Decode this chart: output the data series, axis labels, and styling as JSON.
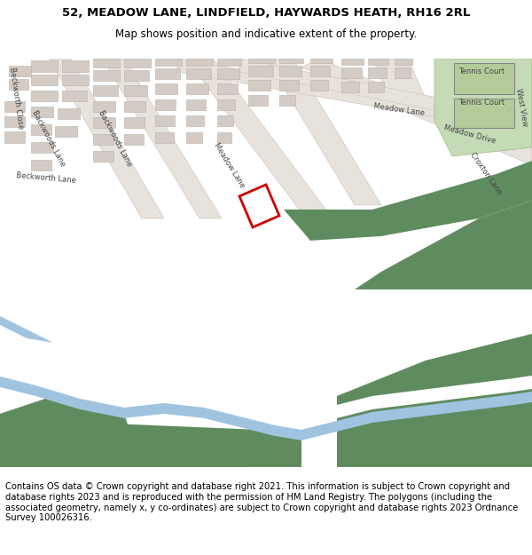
{
  "title_line1": "52, MEADOW LANE, LINDFIELD, HAYWARDS HEATH, RH16 2RL",
  "title_line2": "Map shows position and indicative extent of the property.",
  "footer_text": "Contains OS data © Crown copyright and database right 2021. This information is subject to Crown copyright and database rights 2023 and is reproduced with the permission of HM Land Registry. The polygons (including the associated geometry, namely x, y co-ordinates) are subject to Crown copyright and database rights 2023 Ordnance Survey 100026316.",
  "bg_color": "#ffffff",
  "map_bg": "#f2ede8",
  "green_dark": "#5f8c5f",
  "green_light": "#c5dbb5",
  "green_tennis": "#b5cc9a",
  "road_color": "#e8e2dc",
  "building_fill": "#d4cbc4",
  "building_edge": "#b8b0a8",
  "plot_color": "#cc0000",
  "water_fill": "#a0c4e0",
  "river_bank": "#e8e2dc",
  "title_fontsize": 9.5,
  "subtitle_fontsize": 8.5,
  "footer_fontsize": 7.2,
  "label_fontsize": 6.5,
  "label_color": "#444444"
}
